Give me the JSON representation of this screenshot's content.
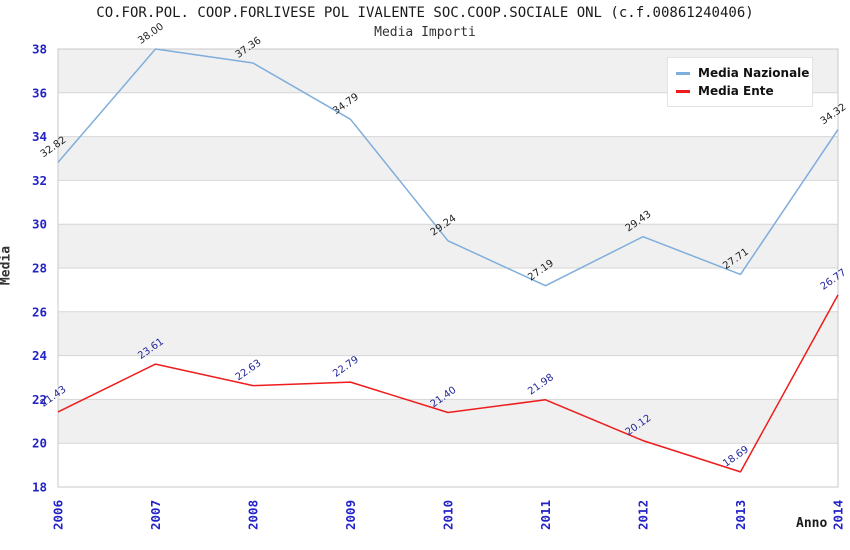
{
  "header": {
    "title": "CO.FOR.POL. COOP.FORLIVESE POL IVALENTE SOC.COOP.SOCIALE ONL (c.f.00861240406)",
    "subtitle": "Media Importi"
  },
  "chart_data": {
    "type": "line",
    "title": "CO.FOR.POL. COOP.FORLIVESE POL IVALENTE SOC.COOP.SOCIALE ONL (c.f.00861240406)",
    "subtitle": "Media Importi",
    "xlabel": "Anno",
    "ylabel": "Media",
    "x": [
      "2006",
      "2007",
      "2008",
      "2009",
      "2010",
      "2011",
      "2012",
      "2013",
      "2014"
    ],
    "series": [
      {
        "name": "Media Nazionale",
        "color": "#7FAEDC",
        "label_color": "#222222",
        "values": [
          32.82,
          38.0,
          37.36,
          34.79,
          29.24,
          27.19,
          29.43,
          27.71,
          34.32
        ]
      },
      {
        "name": "Media Ente",
        "color": "#EE1C1C",
        "label_color": "#22269B",
        "values": [
          21.43,
          23.61,
          22.63,
          22.79,
          21.4,
          21.98,
          20.12,
          18.69,
          26.77
        ]
      }
    ],
    "ylim": [
      18,
      38
    ],
    "ytick_step": 2,
    "yticks": [
      "18",
      "20",
      "22",
      "24",
      "26",
      "28",
      "30",
      "32",
      "34",
      "36",
      "38"
    ],
    "legend_position": "top-right",
    "grid": "horizontal-bands",
    "band_color": "#F0F0F0",
    "grid_color": "#D6D6D6",
    "border_color": "#C9C9C9",
    "tick_color": "#2323C8"
  }
}
